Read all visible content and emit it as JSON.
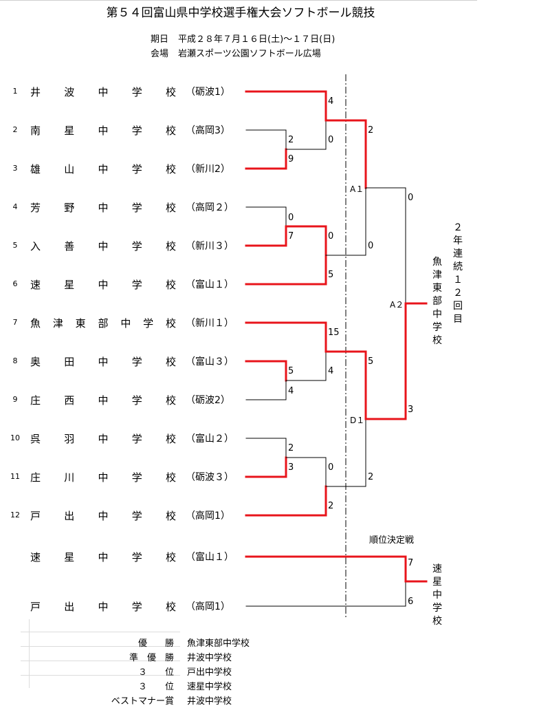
{
  "title": "第５４回富山県中学校選手権大会ソフトボール競技",
  "date_label": "期日",
  "date_value": "平成２８年７月１６日(土)～１７日(日)",
  "venue_label": "会場",
  "venue_value": "岩瀬スポーツ公園ソフトボール広場",
  "teams": [
    {
      "no": "1",
      "name": "井波中学校",
      "region": "（砺波1）"
    },
    {
      "no": "2",
      "name": "南星中学校",
      "region": "（高岡3）"
    },
    {
      "no": "3",
      "name": "雄山中学校",
      "region": "（新川2）"
    },
    {
      "no": "4",
      "name": "芳野中学校",
      "region": "（高岡２）"
    },
    {
      "no": "5",
      "name": "入善中学校",
      "region": "（新川３）"
    },
    {
      "no": "6",
      "name": "速星中学校",
      "region": "（富山１）"
    },
    {
      "no": "7",
      "name": "魚津東部中学校",
      "region": "（新川１）"
    },
    {
      "no": "8",
      "name": "奥田中学校",
      "region": "（富山３）"
    },
    {
      "no": "9",
      "name": "庄西中学校",
      "region": "（砺波2）"
    },
    {
      "no": "10",
      "name": "呉羽中学校",
      "region": "（富山２）"
    },
    {
      "no": "11",
      "name": "庄川中学校",
      "region": "（砺波３）"
    },
    {
      "no": "12",
      "name": "戸出中学校",
      "region": "（高岡1）"
    }
  ],
  "playoff_teams": [
    {
      "name": "速星中学校",
      "region": "（富山１）"
    },
    {
      "name": "戸出中学校",
      "region": "（高岡1）"
    }
  ],
  "scores": {
    "r1_2v3_top": "2",
    "r1_2v3_bot": "9",
    "r1_4v5_top": "0",
    "r1_4v5_bot": "7",
    "r1_8v9_top": "5",
    "r1_8v9_bot": "4",
    "r1_10v11_top": "2",
    "r1_10v11_bot": "3",
    "qf_1_top": "4",
    "qf_1_bot": "0",
    "qf_2_top": "0",
    "qf_2_bot": "5",
    "qf_3_top": "15",
    "qf_3_bot": "4",
    "qf_4_top": "0",
    "qf_4_bot": "2",
    "sf_1_top": "2",
    "sf_1_bot": "0",
    "sf_2_top": "5",
    "sf_2_bot": "2",
    "final_top": "0",
    "final_bot": "3",
    "playoff_top": "7",
    "playoff_bot": "6"
  },
  "match_codes": {
    "sf_1": "A１",
    "final": "A２",
    "sf_2": "D１"
  },
  "playoff_title": "順位決定戦",
  "champion_note": "２年連続１２回目",
  "champion_name": "魚津東部中学校",
  "playoff_winner": "速星中学校",
  "awards": [
    {
      "role": "優　　勝",
      "school": "魚津東部中学校"
    },
    {
      "role": "準　優　勝",
      "school": "井波中学校"
    },
    {
      "role": "３　　位",
      "school": "戸出中学校"
    },
    {
      "role": "３　　位",
      "school": "速星中学校"
    },
    {
      "role": "ベストマナー賞",
      "school": "井波中学校"
    }
  ],
  "colors": {
    "win": "#e8141b",
    "lose": "#000000",
    "center_line": "#000000"
  }
}
